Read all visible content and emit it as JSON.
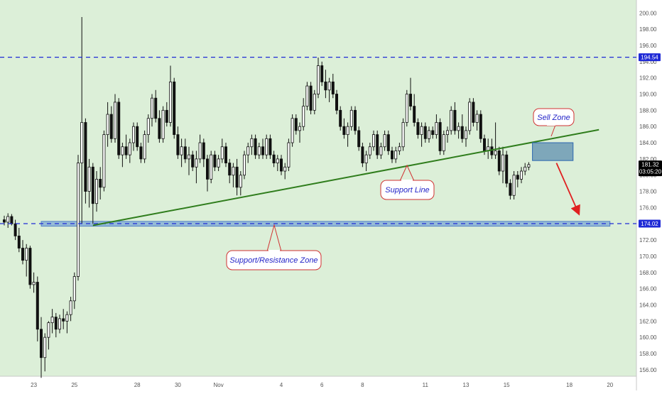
{
  "colors": {
    "background": "#dcefd8",
    "candle": "#111111",
    "dashed_level": "#1f2ad6",
    "trend_line": "#2f7d1c",
    "zone_fill": "#5b8fd6",
    "callout_border": "#d03232",
    "arrow": "#e02020",
    "callout_text": "#2424c8",
    "price_label_bg": "#1f2ad6",
    "current_label_bg": "#000000"
  },
  "price_labels": {
    "upper_level": "194.54",
    "lower_level": "174.02",
    "current": "181.32",
    "countdown": "03:05:20"
  },
  "annotations": {
    "sell_zone": "Sell Zone",
    "support_line": "Support Line",
    "sr_zone": "Support/Resistance Zone"
  },
  "chart_data": {
    "type": "candlestick",
    "yaxis": {
      "range": [
        155.2,
        201.6
      ],
      "ticks": [
        "156.00",
        "158.00",
        "160.00",
        "162.00",
        "164.00",
        "166.00",
        "168.00",
        "170.00",
        "172.00",
        "174.00",
        "176.00",
        "178.00",
        "180.00",
        "182.00",
        "184.00",
        "186.00",
        "188.00",
        "190.00",
        "192.00",
        "194.00",
        "196.00",
        "198.00",
        "200.00"
      ]
    },
    "xaxis": {
      "tick_labels": [
        {
          "label": "23",
          "index": 8
        },
        {
          "label": "25",
          "index": 19
        },
        {
          "label": "28",
          "index": 36
        },
        {
          "label": "30",
          "index": 47
        },
        {
          "label": "Nov",
          "index": 58
        },
        {
          "label": "4",
          "index": 75
        },
        {
          "label": "6",
          "index": 86
        },
        {
          "label": "8",
          "index": 97
        },
        {
          "label": "11",
          "index": 114
        },
        {
          "label": "13",
          "index": 125
        },
        {
          "label": "15",
          "index": 136
        },
        {
          "label": "18",
          "index": 153
        },
        {
          "label": "20",
          "index": 164
        }
      ]
    },
    "levels": [
      {
        "name": "upper_level",
        "value": 194.54
      },
      {
        "name": "lower_level",
        "value": 174.02
      }
    ],
    "support_zone": {
      "top": 174.3,
      "bottom": 173.7,
      "start_index": 10,
      "end_index": 164
    },
    "trend_line": {
      "start": {
        "index": 24,
        "value": 173.8
      },
      "end": {
        "index": 161,
        "value": 185.6
      }
    },
    "sell_zone": {
      "top": 184.0,
      "bottom": 181.8,
      "start_index": 143,
      "end_index": 154
    },
    "arrow": {
      "start": {
        "index": 149.5,
        "value": 181.5
      },
      "end": {
        "index": 155.5,
        "value": 175.3
      }
    },
    "ohlc": [
      [
        174.5,
        175.0,
        173.8,
        174.2
      ],
      [
        174.2,
        175.3,
        173.5,
        174.9
      ],
      [
        174.9,
        175.2,
        173.8,
        174.0
      ],
      [
        174.0,
        174.5,
        172.0,
        172.5
      ],
      [
        172.5,
        173.5,
        170.5,
        171.0
      ],
      [
        171.0,
        172.0,
        169.0,
        169.5
      ],
      [
        169.5,
        171.5,
        167.5,
        171.0
      ],
      [
        171.0,
        171.3,
        166.0,
        166.5
      ],
      [
        166.5,
        168.0,
        165.5,
        166.8
      ],
      [
        166.8,
        167.5,
        159.5,
        161.0
      ],
      [
        161.0,
        162.5,
        155.0,
        157.5
      ],
      [
        157.5,
        160.5,
        155.8,
        160.0
      ],
      [
        160.0,
        162.0,
        158.5,
        161.8
      ],
      [
        161.8,
        163.5,
        160.5,
        162.5
      ],
      [
        162.5,
        163.0,
        160.0,
        161.0
      ],
      [
        161.0,
        162.8,
        160.5,
        162.3
      ],
      [
        162.3,
        163.5,
        161.0,
        162.0
      ],
      [
        162.0,
        163.2,
        160.5,
        162.8
      ],
      [
        162.8,
        165.0,
        162.0,
        164.5
      ],
      [
        164.5,
        168.0,
        163.5,
        167.5
      ],
      [
        167.5,
        182.5,
        167.0,
        181.5
      ],
      [
        181.5,
        199.5,
        174.0,
        186.5
      ],
      [
        186.5,
        187.0,
        176.5,
        178.0
      ],
      [
        178.0,
        182.0,
        176.0,
        181.0
      ],
      [
        181.0,
        181.5,
        174.0,
        176.5
      ],
      [
        176.5,
        180.5,
        175.5,
        179.5
      ],
      [
        179.5,
        181.0,
        177.0,
        178.5
      ],
      [
        178.5,
        185.5,
        178.0,
        185.0
      ],
      [
        185.0,
        189.0,
        183.5,
        187.5
      ],
      [
        187.5,
        188.5,
        184.0,
        184.5
      ],
      [
        184.5,
        190.0,
        184.0,
        189.0
      ],
      [
        189.0,
        189.5,
        182.0,
        182.5
      ],
      [
        182.5,
        184.0,
        181.0,
        183.5
      ],
      [
        183.5,
        185.0,
        182.0,
        182.5
      ],
      [
        182.5,
        184.5,
        181.5,
        184.0
      ],
      [
        184.0,
        186.5,
        183.0,
        186.0
      ],
      [
        186.0,
        186.5,
        183.0,
        183.5
      ],
      [
        183.5,
        184.0,
        181.5,
        182.0
      ],
      [
        182.0,
        185.5,
        181.5,
        185.0
      ],
      [
        185.0,
        187.5,
        184.0,
        187.0
      ],
      [
        187.0,
        190.0,
        186.0,
        189.5
      ],
      [
        189.5,
        190.5,
        186.5,
        187.0
      ],
      [
        187.0,
        188.0,
        184.0,
        184.5
      ],
      [
        184.5,
        188.5,
        184.0,
        188.0
      ],
      [
        188.0,
        189.0,
        186.0,
        186.5
      ],
      [
        186.5,
        193.5,
        186.0,
        191.5
      ],
      [
        191.5,
        192.0,
        184.5,
        185.0
      ],
      [
        185.0,
        186.0,
        182.0,
        182.5
      ],
      [
        182.5,
        184.5,
        181.0,
        183.5
      ],
      [
        183.5,
        184.5,
        181.5,
        182.0
      ],
      [
        182.0,
        183.5,
        180.0,
        182.5
      ],
      [
        182.5,
        183.0,
        180.5,
        181.0
      ],
      [
        181.0,
        183.0,
        179.0,
        182.0
      ],
      [
        182.0,
        185.0,
        181.5,
        184.0
      ],
      [
        184.0,
        184.5,
        181.0,
        182.0
      ],
      [
        182.0,
        182.5,
        178.0,
        179.5
      ],
      [
        179.5,
        183.0,
        179.0,
        182.5
      ],
      [
        182.5,
        183.0,
        180.5,
        181.0
      ],
      [
        181.0,
        182.5,
        180.5,
        182.0
      ],
      [
        182.0,
        184.5,
        181.5,
        183.5
      ],
      [
        183.5,
        184.0,
        181.0,
        181.5
      ],
      [
        181.5,
        182.0,
        179.0,
        180.0
      ],
      [
        180.0,
        181.5,
        178.5,
        181.0
      ],
      [
        181.0,
        182.0,
        177.5,
        178.5
      ],
      [
        178.5,
        180.5,
        177.5,
        180.0
      ],
      [
        180.0,
        183.0,
        179.5,
        182.5
      ],
      [
        182.5,
        184.0,
        181.5,
        183.5
      ],
      [
        183.5,
        185.0,
        182.5,
        184.5
      ],
      [
        184.5,
        185.0,
        182.0,
        182.5
      ],
      [
        182.5,
        184.0,
        182.0,
        183.5
      ],
      [
        183.5,
        184.5,
        182.0,
        182.5
      ],
      [
        182.5,
        185.0,
        182.0,
        184.5
      ],
      [
        184.5,
        185.0,
        182.0,
        182.5
      ],
      [
        182.5,
        183.0,
        181.0,
        181.5
      ],
      [
        181.5,
        182.5,
        180.5,
        182.0
      ],
      [
        182.0,
        182.5,
        180.0,
        180.5
      ],
      [
        180.5,
        181.5,
        179.5,
        181.0
      ],
      [
        181.0,
        184.5,
        180.5,
        184.0
      ],
      [
        184.0,
        187.5,
        183.5,
        187.0
      ],
      [
        187.0,
        187.5,
        185.0,
        185.5
      ],
      [
        185.5,
        186.5,
        184.0,
        186.0
      ],
      [
        186.0,
        189.5,
        185.5,
        188.5
      ],
      [
        188.5,
        191.5,
        188.0,
        191.0
      ],
      [
        191.0,
        191.5,
        187.5,
        188.0
      ],
      [
        188.0,
        190.5,
        187.5,
        190.0
      ],
      [
        190.0,
        194.5,
        189.5,
        193.5
      ],
      [
        193.5,
        194.0,
        191.0,
        191.5
      ],
      [
        191.5,
        193.0,
        189.5,
        190.5
      ],
      [
        190.5,
        192.0,
        189.0,
        191.5
      ],
      [
        191.5,
        192.5,
        189.5,
        190.0
      ],
      [
        190.0,
        190.5,
        187.5,
        188.0
      ],
      [
        188.0,
        188.5,
        185.5,
        186.0
      ],
      [
        186.0,
        187.0,
        184.5,
        185.0
      ],
      [
        185.0,
        186.5,
        183.5,
        186.0
      ],
      [
        186.0,
        188.5,
        185.5,
        188.0
      ],
      [
        188.0,
        188.5,
        185.0,
        185.5
      ],
      [
        185.5,
        186.0,
        183.0,
        183.5
      ],
      [
        183.5,
        184.0,
        181.0,
        181.5
      ],
      [
        181.5,
        183.0,
        180.5,
        182.5
      ],
      [
        182.5,
        184.0,
        182.0,
        183.5
      ],
      [
        183.5,
        185.5,
        183.0,
        185.0
      ],
      [
        185.0,
        185.5,
        182.0,
        182.5
      ],
      [
        182.5,
        184.0,
        182.0,
        183.5
      ],
      [
        183.5,
        185.5,
        183.0,
        185.0
      ],
      [
        185.0,
        185.5,
        182.5,
        183.0
      ],
      [
        183.0,
        183.5,
        181.5,
        182.0
      ],
      [
        182.0,
        183.5,
        181.5,
        183.0
      ],
      [
        183.0,
        184.0,
        182.5,
        183.5
      ],
      [
        183.5,
        187.0,
        183.0,
        186.5
      ],
      [
        186.5,
        190.5,
        186.0,
        190.0
      ],
      [
        190.0,
        192.0,
        188.0,
        188.5
      ],
      [
        188.5,
        190.0,
        186.0,
        186.5
      ],
      [
        186.5,
        187.0,
        184.5,
        185.0
      ],
      [
        185.0,
        186.5,
        183.5,
        186.0
      ],
      [
        186.0,
        186.5,
        184.0,
        184.5
      ],
      [
        184.5,
        186.0,
        184.0,
        185.5
      ],
      [
        185.5,
        186.0,
        184.5,
        185.0
      ],
      [
        185.0,
        187.5,
        184.5,
        186.5
      ],
      [
        186.5,
        187.0,
        182.5,
        183.0
      ],
      [
        183.0,
        185.5,
        182.5,
        185.0
      ],
      [
        185.0,
        186.0,
        184.0,
        185.5
      ],
      [
        185.5,
        188.5,
        185.0,
        188.0
      ],
      [
        188.0,
        189.0,
        185.0,
        185.5
      ],
      [
        185.5,
        186.5,
        184.5,
        186.0
      ],
      [
        186.0,
        187.5,
        184.0,
        184.5
      ],
      [
        184.5,
        186.0,
        183.5,
        185.5
      ],
      [
        185.5,
        189.5,
        185.0,
        189.0
      ],
      [
        189.0,
        189.5,
        186.0,
        186.5
      ],
      [
        186.5,
        188.0,
        185.5,
        187.5
      ],
      [
        187.5,
        188.0,
        184.0,
        184.5
      ],
      [
        184.5,
        185.0,
        182.5,
        183.0
      ],
      [
        183.0,
        184.5,
        182.0,
        183.5
      ],
      [
        183.5,
        184.5,
        182.0,
        182.5
      ],
      [
        182.5,
        186.5,
        182.0,
        183.0
      ],
      [
        183.0,
        183.5,
        180.0,
        180.5
      ],
      [
        180.5,
        183.5,
        179.0,
        182.5
      ],
      [
        182.5,
        183.0,
        178.5,
        179.0
      ],
      [
        179.0,
        179.5,
        177.0,
        177.5
      ],
      [
        177.5,
        180.5,
        177.0,
        180.0
      ],
      [
        180.0,
        180.5,
        178.5,
        179.5
      ],
      [
        179.5,
        181.0,
        179.0,
        180.5
      ],
      [
        180.5,
        181.5,
        180.0,
        181.0
      ],
      [
        181.0,
        181.6,
        180.6,
        181.3
      ]
    ]
  }
}
